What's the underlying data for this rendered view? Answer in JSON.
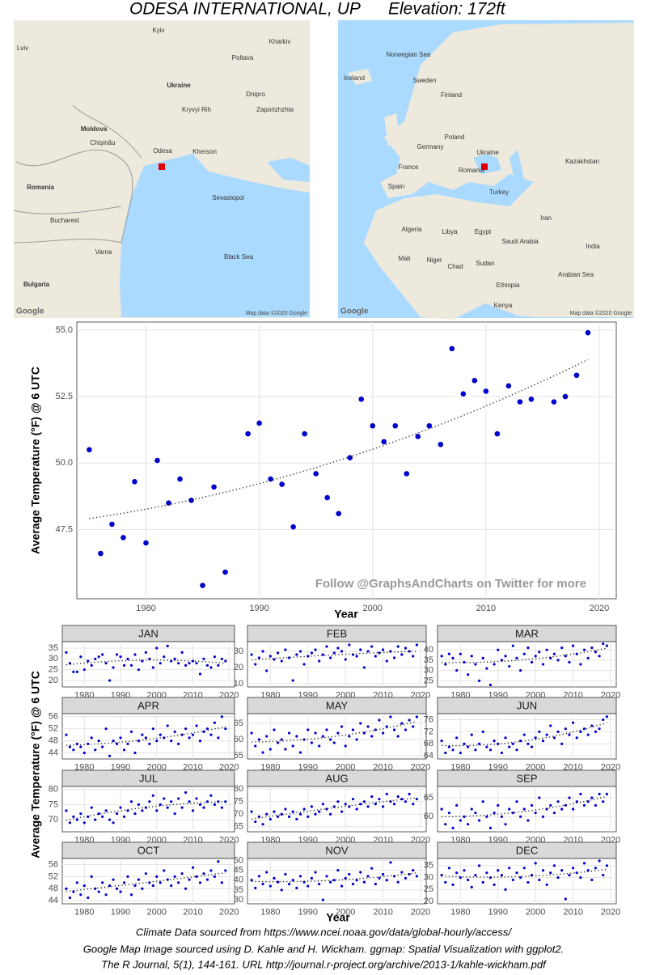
{
  "title": "ODESA INTERNATIONAL, UP",
  "elevation": "Elevation: 172ft",
  "maps": {
    "regional": {
      "labels": [
        "Kyiv",
        "Lviv",
        "Kharkiv",
        "Poltava",
        "Ukraine",
        "Dnipro",
        "Kryvyi Rih",
        "Zaporizhzhia",
        "Moldova",
        "Chișinău",
        "Odesa",
        "Kherson",
        "Romania",
        "Bucharest",
        "Varna",
        "Bulgaria",
        "Sevastopol",
        "Black Sea"
      ],
      "logo": "Google",
      "credit": "Map data ©2020 Google"
    },
    "world": {
      "labels": [
        "Norwegian Sea",
        "Iceland",
        "Sweden",
        "Finland",
        "Germany",
        "Poland",
        "Ukraine",
        "Romania",
        "France",
        "Spain",
        "Turkey",
        "Kazakhstan",
        "Iran",
        "Algeria",
        "Libya",
        "Egypt",
        "Saudi Arabia",
        "Mali",
        "Niger",
        "Chad",
        "Sudan",
        "Ethiopia",
        "Kenya",
        "India",
        "Arabian Sea"
      ],
      "logo": "Google",
      "credit": "Map data ©2020 Google"
    }
  },
  "chart_data": [
    {
      "type": "scatter",
      "color": "#0000cc",
      "trend": true,
      "x": [
        1975,
        1976,
        1977,
        1978,
        1979,
        1980,
        1981,
        1982,
        1983,
        1984,
        1985,
        1986,
        1987,
        1989,
        1990,
        1991,
        1992,
        1993,
        1994,
        1995,
        1996,
        1997,
        1998,
        1999,
        2000,
        2001,
        2002,
        2003,
        2004,
        2005,
        2006,
        2007,
        2008,
        2009,
        2010,
        2011,
        2012,
        2013,
        2014,
        2016,
        2017,
        2018,
        2019
      ],
      "values": [
        50.5,
        46.6,
        47.7,
        47.2,
        49.3,
        47.0,
        50.1,
        48.5,
        49.4,
        48.6,
        45.4,
        49.1,
        45.9,
        51.1,
        51.5,
        49.4,
        49.2,
        47.6,
        51.1,
        49.6,
        48.7,
        48.1,
        50.2,
        52.4,
        51.4,
        50.8,
        51.4,
        49.6,
        51.0,
        51.4,
        50.7,
        54.3,
        52.6,
        53.1,
        52.7,
        51.1,
        52.9,
        52.3,
        52.4,
        52.3,
        52.5,
        53.3,
        54.9
      ],
      "xlim": [
        1973.9,
        2021.5
      ],
      "ylim": [
        44.9,
        55.3
      ],
      "xticks": [
        1980,
        1990,
        2000,
        2010,
        2020
      ],
      "yticks": [
        47.5,
        {
          "value": 50,
          "label": "50.0"
        },
        52.5,
        {
          "value": 55,
          "label": "55.0"
        }
      ],
      "xlabel": "Year",
      "ylabel": "Average Temperature (°F) @ 6 UTC",
      "annotation": "Follow @GraphsAndCharts on Twitter for more"
    },
    {
      "type": "scatter",
      "color": "#0000cc",
      "trend": true,
      "x": [
        1975,
        1976,
        1977,
        1978,
        1979,
        1980,
        1981,
        1982,
        1983,
        1984,
        1985,
        1986,
        1987,
        1988,
        1989,
        1990,
        1991,
        1992,
        1993,
        1994,
        1995,
        1996,
        1997,
        1998,
        1999,
        2000,
        2001,
        2002,
        2003,
        2004,
        2005,
        2006,
        2007,
        2008,
        2009,
        2010,
        2011,
        2012,
        2013,
        2014,
        2015,
        2016,
        2017,
        2018,
        2019
      ],
      "xlim": [
        1973.9,
        2021.5
      ],
      "xticks": [
        1980,
        1990,
        2000,
        2010,
        2020
      ],
      "xlabel": "Year",
      "ylabel": "Average Temperature (°F) @ 6 UTC",
      "panels": [
        {
          "title": "JAN",
          "ylim": [
            17,
            38
          ],
          "yticks": [
            20,
            25,
            30,
            35
          ],
          "values": [
            33,
            28,
            24,
            24,
            31,
            25,
            29,
            27,
            30,
            31,
            32,
            28,
            20,
            26,
            32,
            31,
            27,
            30,
            27,
            32,
            25,
            29,
            33,
            30,
            26,
            35,
            28,
            31,
            36,
            29,
            30,
            28,
            33,
            27,
            28,
            29,
            28,
            23,
            30,
            27,
            26,
            31,
            27,
            30,
            29
          ]
        },
        {
          "title": "FEB",
          "ylim": [
            8,
            36
          ],
          "yticks": [
            10,
            20,
            30
          ],
          "values": [
            28,
            22,
            26,
            30,
            18,
            27,
            25,
            29,
            24,
            31,
            26,
            12,
            28,
            30,
            22,
            27,
            29,
            31,
            24,
            28,
            33,
            26,
            29,
            32,
            30,
            25,
            34,
            28,
            27,
            31,
            20,
            30,
            33,
            27,
            29,
            31,
            24,
            30,
            26,
            33,
            28,
            32,
            30,
            27,
            34
          ]
        },
        {
          "title": "MAR",
          "ylim": [
            22,
            44
          ],
          "yticks": [
            25,
            30,
            35,
            40
          ],
          "values": [
            37,
            33,
            38,
            36,
            30,
            38,
            34,
            28,
            37,
            33,
            25,
            36,
            31,
            23,
            33,
            40,
            35,
            37,
            32,
            42,
            36,
            30,
            38,
            41,
            34,
            37,
            39,
            33,
            40,
            36,
            38,
            35,
            41,
            37,
            34,
            42,
            38,
            33,
            40,
            36,
            41,
            39,
            37,
            43,
            42
          ]
        },
        {
          "title": "APR",
          "ylim": [
            42,
            57
          ],
          "yticks": [
            44,
            48,
            52,
            56
          ],
          "values": [
            50,
            46,
            45,
            47,
            46,
            44,
            47,
            49,
            45,
            48,
            46,
            52,
            43,
            48,
            47,
            49,
            45,
            47,
            51,
            44,
            48,
            50,
            49,
            47,
            52,
            48,
            50,
            49,
            53,
            48,
            51,
            47,
            50,
            52,
            49,
            50,
            53,
            48,
            51,
            52,
            50,
            54,
            49,
            56,
            52
          ]
        },
        {
          "title": "MAY",
          "ylim": [
            54,
            68
          ],
          "yticks": [
            55,
            60,
            65
          ],
          "values": [
            62,
            58,
            60,
            56,
            61,
            57,
            63,
            59,
            60,
            57,
            62,
            58,
            61,
            56,
            60,
            63,
            59,
            62,
            58,
            61,
            63,
            60,
            59,
            62,
            64,
            58,
            61,
            63,
            60,
            65,
            62,
            64,
            61,
            63,
            66,
            62,
            64,
            67,
            63,
            61,
            65,
            63,
            66,
            64,
            67
          ]
        },
        {
          "title": "JUN",
          "ylim": [
            63,
            78
          ],
          "yticks": [
            64,
            68,
            72,
            76
          ],
          "values": [
            69,
            65,
            67,
            66,
            70,
            65,
            68,
            67,
            71,
            66,
            68,
            72,
            67,
            66,
            69,
            68,
            65,
            70,
            67,
            68,
            66,
            69,
            71,
            68,
            67,
            70,
            72,
            69,
            71,
            74,
            70,
            72,
            68,
            73,
            71,
            75,
            70,
            72,
            73,
            71,
            74,
            72,
            73,
            76,
            77
          ]
        },
        {
          "title": "JUL",
          "ylim": [
            66,
            81
          ],
          "yticks": [
            70,
            75,
            80
          ],
          "values": [
            73,
            69,
            71,
            70,
            72,
            69,
            71,
            74,
            70,
            72,
            71,
            73,
            70,
            69,
            72,
            74,
            71,
            73,
            76,
            72,
            75,
            73,
            74,
            76,
            78,
            73,
            75,
            77,
            74,
            76,
            72,
            77,
            74,
            79,
            76,
            73,
            77,
            75,
            74,
            76,
            78,
            75,
            76,
            74,
            76
          ]
        },
        {
          "title": "AUG",
          "ylim": [
            63,
            81
          ],
          "yticks": [
            65,
            70,
            75,
            80
          ],
          "values": [
            71,
            67,
            69,
            66,
            70,
            68,
            71,
            69,
            70,
            72,
            69,
            71,
            68,
            70,
            72,
            69,
            73,
            70,
            71,
            74,
            72,
            70,
            73,
            75,
            71,
            74,
            73,
            76,
            72,
            74,
            75,
            73,
            77,
            74,
            76,
            73,
            78,
            75,
            74,
            77,
            76,
            75,
            78,
            74,
            76
          ]
        },
        {
          "title": "SEP",
          "ylim": [
            56,
            68
          ],
          "yticks": [
            60,
            65
          ],
          "values": [
            62,
            58,
            61,
            57,
            63,
            59,
            60,
            58,
            62,
            61,
            59,
            64,
            60,
            57,
            61,
            63,
            60,
            58,
            62,
            61,
            64,
            60,
            62,
            59,
            63,
            61,
            65,
            60,
            62,
            63,
            61,
            64,
            62,
            63,
            65,
            62,
            64,
            66,
            63,
            64,
            65,
            63,
            66,
            64,
            66
          ]
        },
        {
          "title": "OCT",
          "ylim": [
            43,
            58
          ],
          "yticks": [
            44,
            48,
            52,
            56
          ],
          "values": [
            48,
            45,
            47,
            50,
            46,
            49,
            45,
            52,
            48,
            47,
            50,
            46,
            49,
            51,
            48,
            47,
            50,
            52,
            46,
            49,
            51,
            48,
            53,
            50,
            49,
            52,
            50,
            54,
            51,
            49,
            52,
            50,
            53,
            48,
            51,
            55,
            52,
            50,
            53,
            51,
            54,
            52,
            57,
            50,
            54
          ]
        },
        {
          "title": "NOV",
          "ylim": [
            28,
            51
          ],
          "yticks": [
            30,
            35,
            40,
            45,
            50
          ],
          "values": [
            40,
            36,
            42,
            38,
            44,
            37,
            41,
            39,
            35,
            43,
            38,
            40,
            36,
            42,
            39,
            37,
            41,
            44,
            38,
            30,
            42,
            39,
            40,
            45,
            37,
            41,
            43,
            38,
            40,
            44,
            39,
            42,
            46,
            38,
            41,
            43,
            40,
            49,
            42,
            39,
            44,
            41,
            43,
            45,
            42
          ]
        },
        {
          "title": "DEC",
          "ylim": [
            19,
            38
          ],
          "yticks": [
            20,
            25,
            30,
            35
          ],
          "values": [
            31,
            28,
            34,
            27,
            32,
            30,
            33,
            29,
            26,
            31,
            35,
            28,
            32,
            30,
            27,
            33,
            31,
            25,
            34,
            29,
            32,
            30,
            34,
            28,
            31,
            36,
            29,
            33,
            27,
            32,
            35,
            30,
            33,
            21,
            31,
            34,
            32,
            30,
            36,
            33,
            29,
            34,
            37,
            31,
            35
          ]
        }
      ]
    }
  ],
  "footer": [
    "Climate Data sourced from https://www.ncei.noaa.gov/data/global-hourly/access/",
    "Google Map Image sourced using D. Kahle and H. Wickham. ggmap: Spatial Visualization with ggplot2.",
    "The R Journal, 5(1), 144-161. URL http://journal.r-project.org/archive/2013-1/kahle-wickham.pdf"
  ]
}
